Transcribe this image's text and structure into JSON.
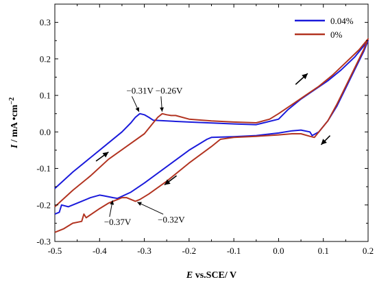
{
  "chart_data": {
    "type": "line",
    "title": "",
    "xlabel_italic": "E",
    "xlabel_rest": " vs.SCE/ V",
    "ylabel_italic": "I",
    "ylabel_rest": " / mA •cm",
    "ylabel_sup": "−2",
    "xlim": [
      -0.5,
      0.2
    ],
    "ylim": [
      -0.3,
      0.35
    ],
    "x_ticks": [
      -0.5,
      -0.4,
      -0.3,
      -0.2,
      -0.1,
      0.0,
      0.1,
      0.2
    ],
    "x_tick_labels": [
      "-0.5",
      "-0.4",
      "-0.3",
      "-0.2",
      "-0.1",
      "0.0",
      "0.1",
      "0.2"
    ],
    "y_ticks": [
      -0.3,
      -0.2,
      -0.1,
      0.0,
      0.1,
      0.2,
      0.3
    ],
    "y_tick_labels": [
      "-0.3",
      "-0.2",
      "-0.1",
      "0.0",
      "0.1",
      "0.2",
      "0.3"
    ],
    "grid": false,
    "legend_position": "top-right",
    "series": [
      {
        "name": "0.04%",
        "color": "#1a1adb",
        "points": [
          [
            -0.5,
            -0.155
          ],
          [
            -0.46,
            -0.11
          ],
          [
            -0.42,
            -0.07
          ],
          [
            -0.38,
            -0.03
          ],
          [
            -0.35,
            0.0
          ],
          [
            -0.33,
            0.025
          ],
          [
            -0.32,
            0.04
          ],
          [
            -0.31,
            0.05
          ],
          [
            -0.3,
            0.047
          ],
          [
            -0.29,
            0.04
          ],
          [
            -0.28,
            0.032
          ],
          [
            -0.25,
            0.03
          ],
          [
            -0.2,
            0.027
          ],
          [
            -0.1,
            0.022
          ],
          [
            -0.05,
            0.02
          ],
          [
            0.0,
            0.035
          ],
          [
            0.02,
            0.06
          ],
          [
            0.05,
            0.09
          ],
          [
            0.08,
            0.115
          ],
          [
            0.11,
            0.14
          ],
          [
            0.14,
            0.17
          ],
          [
            0.17,
            0.205
          ],
          [
            0.2,
            0.25
          ],
          [
            0.19,
            0.22
          ],
          [
            0.17,
            0.17
          ],
          [
            0.15,
            0.12
          ],
          [
            0.13,
            0.07
          ],
          [
            0.11,
            0.03
          ],
          [
            0.09,
            0.0
          ],
          [
            0.075,
            -0.01
          ],
          [
            0.07,
            0.0
          ],
          [
            0.05,
            0.005
          ],
          [
            0.03,
            0.003
          ],
          [
            0.0,
            -0.003
          ],
          [
            -0.05,
            -0.01
          ],
          [
            -0.1,
            -0.013
          ],
          [
            -0.15,
            -0.015
          ],
          [
            -0.16,
            -0.02
          ],
          [
            -0.2,
            -0.05
          ],
          [
            -0.25,
            -0.095
          ],
          [
            -0.3,
            -0.14
          ],
          [
            -0.33,
            -0.165
          ],
          [
            -0.36,
            -0.182
          ],
          [
            -0.37,
            -0.18
          ],
          [
            -0.39,
            -0.175
          ],
          [
            -0.4,
            -0.173
          ],
          [
            -0.42,
            -0.18
          ],
          [
            -0.44,
            -0.19
          ],
          [
            -0.47,
            -0.205
          ],
          [
            -0.485,
            -0.2
          ],
          [
            -0.49,
            -0.22
          ],
          [
            -0.5,
            -0.225
          ]
        ]
      },
      {
        "name": "0%",
        "color": "#b23320",
        "points": [
          [
            -0.5,
            -0.205
          ],
          [
            -0.46,
            -0.16
          ],
          [
            -0.42,
            -0.12
          ],
          [
            -0.38,
            -0.075
          ],
          [
            -0.34,
            -0.04
          ],
          [
            -0.3,
            -0.005
          ],
          [
            -0.28,
            0.025
          ],
          [
            -0.27,
            0.04
          ],
          [
            -0.26,
            0.05
          ],
          [
            -0.25,
            0.047
          ],
          [
            -0.24,
            0.045
          ],
          [
            -0.23,
            0.045
          ],
          [
            -0.2,
            0.035
          ],
          [
            -0.15,
            0.03
          ],
          [
            -0.1,
            0.027
          ],
          [
            -0.05,
            0.025
          ],
          [
            -0.02,
            0.035
          ],
          [
            0.0,
            0.05
          ],
          [
            0.03,
            0.075
          ],
          [
            0.06,
            0.1
          ],
          [
            0.09,
            0.125
          ],
          [
            0.12,
            0.155
          ],
          [
            0.15,
            0.19
          ],
          [
            0.18,
            0.225
          ],
          [
            0.2,
            0.255
          ],
          [
            0.19,
            0.225
          ],
          [
            0.17,
            0.175
          ],
          [
            0.15,
            0.125
          ],
          [
            0.13,
            0.075
          ],
          [
            0.11,
            0.03
          ],
          [
            0.09,
            0.0
          ],
          [
            0.08,
            -0.015
          ],
          [
            0.07,
            -0.012
          ],
          [
            0.05,
            -0.005
          ],
          [
            0.03,
            -0.005
          ],
          [
            0.0,
            -0.008
          ],
          [
            -0.05,
            -0.012
          ],
          [
            -0.1,
            -0.015
          ],
          [
            -0.13,
            -0.02
          ],
          [
            -0.15,
            -0.04
          ],
          [
            -0.2,
            -0.085
          ],
          [
            -0.25,
            -0.135
          ],
          [
            -0.29,
            -0.17
          ],
          [
            -0.31,
            -0.185
          ],
          [
            -0.32,
            -0.19
          ],
          [
            -0.34,
            -0.18
          ],
          [
            -0.35,
            -0.18
          ],
          [
            -0.36,
            -0.185
          ],
          [
            -0.38,
            -0.195
          ],
          [
            -0.4,
            -0.21
          ],
          [
            -0.43,
            -0.235
          ],
          [
            -0.435,
            -0.225
          ],
          [
            -0.44,
            -0.245
          ],
          [
            -0.46,
            -0.25
          ],
          [
            -0.48,
            -0.265
          ],
          [
            -0.5,
            -0.275
          ]
        ]
      }
    ],
    "annotations": [
      {
        "text": "−0.31V",
        "point": [
          -0.31,
          0.05
        ],
        "label_at": [
          -0.34,
          0.105
        ],
        "anchor": "start"
      },
      {
        "text": "−0.26V",
        "point": [
          -0.26,
          0.05
        ],
        "label_at": [
          -0.275,
          0.105
        ],
        "anchor": "start"
      },
      {
        "text": "−0.37V",
        "point": [
          -0.37,
          -0.182
        ],
        "label_at": [
          -0.39,
          -0.255
        ],
        "anchor": "start"
      },
      {
        "text": "−0.32V",
        "point": [
          -0.32,
          -0.19
        ],
        "label_at": [
          -0.27,
          -0.248
        ],
        "anchor": "start"
      }
    ],
    "direction_arrows": [
      {
        "from": [
          -0.408,
          -0.08
        ],
        "to": [
          -0.38,
          -0.055
        ]
      },
      {
        "from": [
          0.038,
          0.13
        ],
        "to": [
          0.065,
          0.16
        ]
      },
      {
        "from": [
          0.115,
          -0.01
        ],
        "to": [
          0.095,
          -0.035
        ]
      },
      {
        "from": [
          -0.228,
          -0.12
        ],
        "to": [
          -0.255,
          -0.145
        ]
      }
    ]
  }
}
